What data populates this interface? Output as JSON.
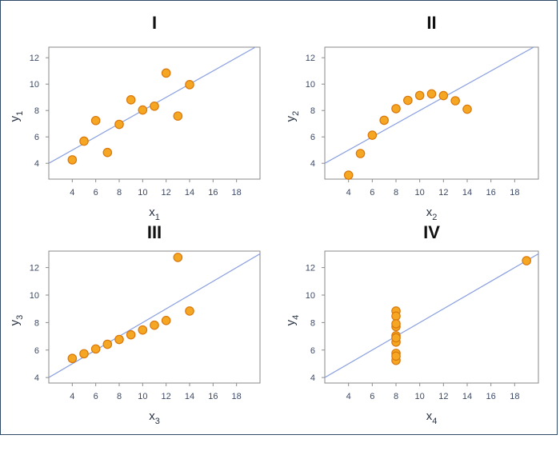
{
  "chart_data": [
    {
      "type": "scatter",
      "title": "I",
      "xlabel": "x",
      "xlabel_sub": "1",
      "ylabel": "y",
      "ylabel_sub": "1",
      "xlim": [
        2,
        20
      ],
      "ylim": [
        2.8,
        12.8
      ],
      "xticks": [
        4,
        6,
        8,
        10,
        12,
        14,
        16,
        18
      ],
      "yticks": [
        4,
        6,
        8,
        10,
        12
      ],
      "fit_line": {
        "intercept": 3.0,
        "slope": 0.5
      },
      "points": [
        {
          "x": 10,
          "y": 8.04
        },
        {
          "x": 8,
          "y": 6.95
        },
        {
          "x": 13,
          "y": 7.58
        },
        {
          "x": 9,
          "y": 8.81
        },
        {
          "x": 11,
          "y": 8.33
        },
        {
          "x": 14,
          "y": 9.96
        },
        {
          "x": 6,
          "y": 7.24
        },
        {
          "x": 4,
          "y": 4.26
        },
        {
          "x": 12,
          "y": 10.84
        },
        {
          "x": 7,
          "y": 4.82
        },
        {
          "x": 5,
          "y": 5.68
        }
      ]
    },
    {
      "type": "scatter",
      "title": "II",
      "xlabel": "x",
      "xlabel_sub": "2",
      "ylabel": "y",
      "ylabel_sub": "2",
      "xlim": [
        2,
        20
      ],
      "ylim": [
        2.8,
        12.8
      ],
      "xticks": [
        4,
        6,
        8,
        10,
        12,
        14,
        16,
        18
      ],
      "yticks": [
        4,
        6,
        8,
        10,
        12
      ],
      "fit_line": {
        "intercept": 3.0,
        "slope": 0.5
      },
      "points": [
        {
          "x": 10,
          "y": 9.14
        },
        {
          "x": 8,
          "y": 8.14
        },
        {
          "x": 13,
          "y": 8.74
        },
        {
          "x": 9,
          "y": 8.77
        },
        {
          "x": 11,
          "y": 9.26
        },
        {
          "x": 14,
          "y": 8.1
        },
        {
          "x": 6,
          "y": 6.13
        },
        {
          "x": 4,
          "y": 3.1
        },
        {
          "x": 12,
          "y": 9.13
        },
        {
          "x": 7,
          "y": 7.26
        },
        {
          "x": 5,
          "y": 4.74
        }
      ]
    },
    {
      "type": "scatter",
      "title": "III",
      "xlabel": "x",
      "xlabel_sub": "3",
      "ylabel": "y",
      "ylabel_sub": "3",
      "xlim": [
        2,
        20
      ],
      "ylim": [
        3.6,
        13.2
      ],
      "xticks": [
        4,
        6,
        8,
        10,
        12,
        14,
        16,
        18
      ],
      "yticks": [
        4,
        6,
        8,
        10,
        12
      ],
      "fit_line": {
        "intercept": 3.0,
        "slope": 0.5
      },
      "points": [
        {
          "x": 10,
          "y": 7.46
        },
        {
          "x": 8,
          "y": 6.77
        },
        {
          "x": 13,
          "y": 12.74
        },
        {
          "x": 9,
          "y": 7.11
        },
        {
          "x": 11,
          "y": 7.81
        },
        {
          "x": 14,
          "y": 8.84
        },
        {
          "x": 6,
          "y": 6.08
        },
        {
          "x": 4,
          "y": 5.39
        },
        {
          "x": 12,
          "y": 8.15
        },
        {
          "x": 7,
          "y": 6.42
        },
        {
          "x": 5,
          "y": 5.73
        }
      ]
    },
    {
      "type": "scatter",
      "title": "IV",
      "xlabel": "x",
      "xlabel_sub": "4",
      "ylabel": "y",
      "ylabel_sub": "4",
      "xlim": [
        2,
        20
      ],
      "ylim": [
        3.6,
        13.2
      ],
      "xticks": [
        4,
        6,
        8,
        10,
        12,
        14,
        16,
        18
      ],
      "yticks": [
        4,
        6,
        8,
        10,
        12
      ],
      "fit_line": {
        "intercept": 3.0,
        "slope": 0.5
      },
      "points": [
        {
          "x": 8,
          "y": 6.58
        },
        {
          "x": 8,
          "y": 5.76
        },
        {
          "x": 8,
          "y": 7.71
        },
        {
          "x": 8,
          "y": 8.84
        },
        {
          "x": 8,
          "y": 8.47
        },
        {
          "x": 8,
          "y": 7.04
        },
        {
          "x": 8,
          "y": 5.25
        },
        {
          "x": 19,
          "y": 12.5
        },
        {
          "x": 8,
          "y": 5.56
        },
        {
          "x": 8,
          "y": 7.91
        },
        {
          "x": 8,
          "y": 6.89
        }
      ]
    }
  ],
  "colors": {
    "point_fill": "#f5a623",
    "point_stroke": "#d9780c",
    "fit_line": "#8aa0e0",
    "frame": "#8a8a8a"
  }
}
